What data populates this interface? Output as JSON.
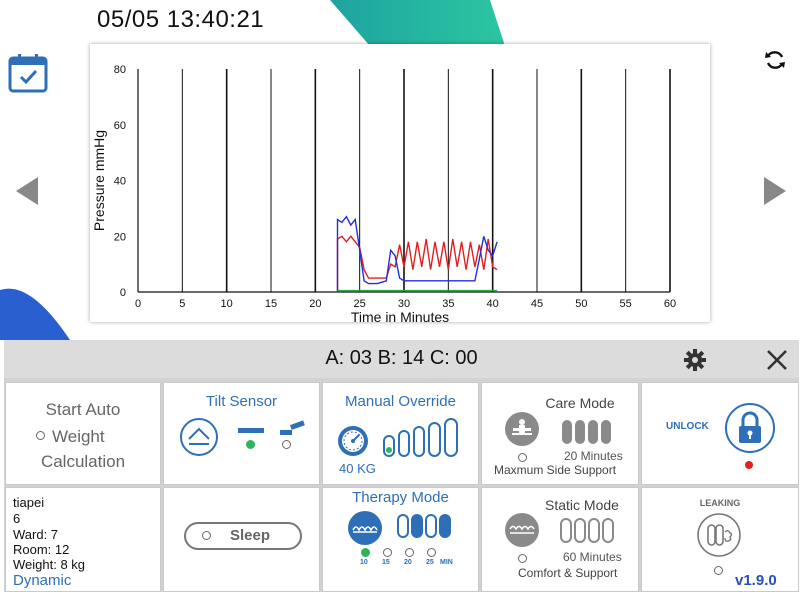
{
  "header": {
    "datetime": "05/05 13:40:21"
  },
  "chart_data": {
    "type": "line",
    "xlabel": "Time in Minutes",
    "ylabel": "Pressure mmHg",
    "x_ticks": [
      0,
      5,
      10,
      15,
      20,
      25,
      30,
      35,
      40,
      45,
      50,
      55,
      60
    ],
    "y_ticks": [
      0,
      20,
      40,
      60,
      80
    ],
    "xlim": [
      0,
      60
    ],
    "ylim": [
      0,
      80
    ],
    "grid": "vertical",
    "series": [
      {
        "color": "#e02020",
        "points": [
          [
            22.5,
            0
          ],
          [
            22.5,
            19
          ],
          [
            23,
            20
          ],
          [
            23.5,
            18
          ],
          [
            24,
            20
          ],
          [
            24.5,
            18
          ],
          [
            25,
            16
          ],
          [
            25.5,
            8
          ],
          [
            26,
            5
          ],
          [
            27,
            5
          ],
          [
            28,
            5
          ],
          [
            28.5,
            10
          ],
          [
            29,
            9
          ],
          [
            29.5,
            17
          ],
          [
            30,
            9
          ],
          [
            30.5,
            18
          ],
          [
            31,
            8
          ],
          [
            31.5,
            18
          ],
          [
            32,
            9
          ],
          [
            32.5,
            19
          ],
          [
            33,
            8
          ],
          [
            33.5,
            18
          ],
          [
            34,
            9
          ],
          [
            34.5,
            18
          ],
          [
            35,
            8
          ],
          [
            35.5,
            19
          ],
          [
            36,
            9
          ],
          [
            36.5,
            18
          ],
          [
            37,
            8
          ],
          [
            37.5,
            18
          ],
          [
            38,
            9
          ],
          [
            38.5,
            17
          ],
          [
            39,
            8
          ],
          [
            39.5,
            19
          ],
          [
            40,
            9
          ],
          [
            40.5,
            8
          ]
        ]
      },
      {
        "color": "#2030e0",
        "points": [
          [
            22.5,
            0
          ],
          [
            22.5,
            26
          ],
          [
            23,
            25
          ],
          [
            23.5,
            27
          ],
          [
            24,
            24
          ],
          [
            24.5,
            26
          ],
          [
            25,
            15
          ],
          [
            25.5,
            4
          ],
          [
            26,
            3
          ],
          [
            27,
            3
          ],
          [
            28,
            4
          ],
          [
            28.5,
            15
          ],
          [
            29,
            13
          ],
          [
            29.5,
            5
          ],
          [
            30,
            4
          ],
          [
            35,
            4
          ],
          [
            38,
            4
          ],
          [
            38.5,
            12
          ],
          [
            39,
            20
          ],
          [
            39.5,
            15
          ],
          [
            40,
            13
          ],
          [
            40.5,
            18
          ]
        ]
      },
      {
        "color": "#22aa44",
        "points": [
          [
            22.5,
            0.5
          ],
          [
            40.5,
            0.5
          ]
        ]
      }
    ]
  },
  "topbar": {
    "counts": "A: 03  B: 14  C: 00"
  },
  "panels": {
    "start_auto": {
      "line1": "Start Auto",
      "line2": "Weight",
      "line3": "Calculation"
    },
    "tilt_sensor": {
      "title": "Tilt Sensor"
    },
    "manual_override": {
      "title": "Manual Override",
      "weight": "40 KG"
    },
    "care_mode": {
      "title": "Care Mode",
      "duration": "20 Minutes",
      "desc": "Maxmum Side Support"
    },
    "unlock": {
      "label": "UNLOCK"
    },
    "patient": {
      "name": "tiapei",
      "id": "6",
      "ward": "Ward: 7",
      "room": "Room: 12",
      "weight": "Weight: 8 kg",
      "mode": "Dynamic"
    },
    "sleep": {
      "label": "Sleep"
    },
    "therapy_mode": {
      "title": "Therapy Mode",
      "options": [
        "10",
        "15",
        "20",
        "25"
      ],
      "unit": "MIN"
    },
    "static_mode": {
      "title": "Static Mode",
      "duration": "60 Minutes",
      "desc": "Comfort & Support"
    },
    "leaking": {
      "label": "LEAKING",
      "version": "v1.9.0"
    }
  },
  "colors": {
    "accent": "#2e6fb8",
    "teal": "#1fb7a8",
    "active": "#2eb55a",
    "alarm": "#e02020"
  }
}
